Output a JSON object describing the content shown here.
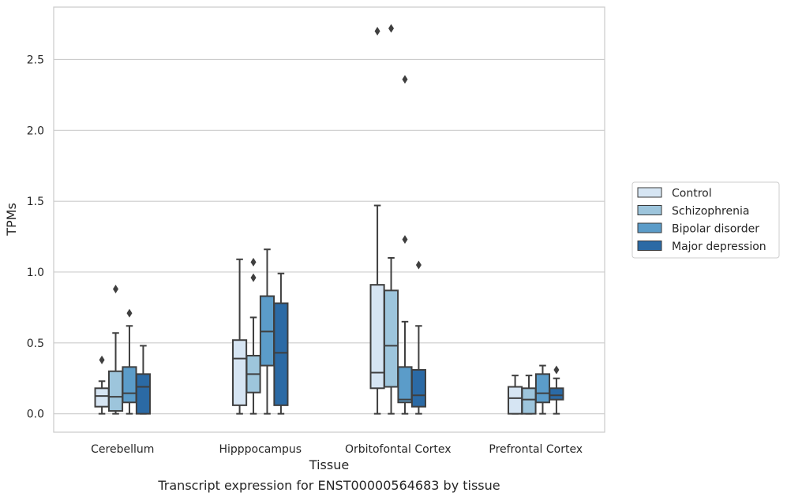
{
  "caption": "Transcript expression for ENST00000564683 by tissue",
  "chart_data": {
    "type": "box",
    "title": "",
    "xlabel": "Tissue",
    "ylabel": "TPMs",
    "ylim": [
      -0.13,
      2.87
    ],
    "yticks": [
      0.0,
      0.5,
      1.0,
      1.5,
      2.0,
      2.5
    ],
    "ytick_labels": [
      "0.0",
      "0.5",
      "1.0",
      "1.5",
      "2.0",
      "2.5"
    ],
    "grid": "horizontal",
    "legend_position": "right",
    "categories": [
      "Cerebellum",
      "Hipppocampus",
      "Orbitofontal Cortex",
      "Prefrontal Cortex"
    ],
    "series": [
      {
        "name": "Control",
        "color": "#d6e5f3",
        "boxes": [
          {
            "whislo": 0.0,
            "q1": 0.05,
            "med": 0.125,
            "q3": 0.18,
            "whishi": 0.23,
            "fliers": [
              0.38
            ]
          },
          {
            "whislo": 0.0,
            "q1": 0.06,
            "med": 0.39,
            "q3": 0.52,
            "whishi": 1.09,
            "fliers": []
          },
          {
            "whislo": 0.0,
            "q1": 0.18,
            "med": 0.29,
            "q3": 0.91,
            "whishi": 1.47,
            "fliers": [
              2.7
            ]
          },
          {
            "whislo": 0.0,
            "q1": 0.0,
            "med": 0.11,
            "q3": 0.19,
            "whishi": 0.27,
            "fliers": []
          }
        ]
      },
      {
        "name": "Schizophrenia",
        "color": "#9dc5dc",
        "boxes": [
          {
            "whislo": 0.0,
            "q1": 0.02,
            "med": 0.12,
            "q3": 0.3,
            "whishi": 0.57,
            "fliers": [
              0.88
            ]
          },
          {
            "whislo": 0.0,
            "q1": 0.15,
            "med": 0.28,
            "q3": 0.41,
            "whishi": 0.68,
            "fliers": [
              0.96,
              1.07
            ]
          },
          {
            "whislo": 0.0,
            "q1": 0.19,
            "med": 0.48,
            "q3": 0.87,
            "whishi": 1.1,
            "fliers": [
              2.72
            ]
          },
          {
            "whislo": 0.0,
            "q1": 0.0,
            "med": 0.1,
            "q3": 0.18,
            "whishi": 0.27,
            "fliers": []
          }
        ]
      },
      {
        "name": "Bipolar disorder",
        "color": "#5b9cc9",
        "boxes": [
          {
            "whislo": 0.0,
            "q1": 0.08,
            "med": 0.145,
            "q3": 0.33,
            "whishi": 0.62,
            "fliers": [
              0.71
            ]
          },
          {
            "whislo": 0.0,
            "q1": 0.34,
            "med": 0.58,
            "q3": 0.83,
            "whishi": 1.16,
            "fliers": []
          },
          {
            "whislo": 0.0,
            "q1": 0.08,
            "med": 0.1,
            "q3": 0.33,
            "whishi": 0.65,
            "fliers": [
              1.23,
              2.36
            ]
          },
          {
            "whislo": 0.0,
            "q1": 0.08,
            "med": 0.145,
            "q3": 0.28,
            "whishi": 0.34,
            "fliers": []
          }
        ]
      },
      {
        "name": "Major depression",
        "color": "#2b6aa5",
        "boxes": [
          {
            "whislo": 0.0,
            "q1": 0.0,
            "med": 0.19,
            "q3": 0.28,
            "whishi": 0.48,
            "fliers": []
          },
          {
            "whislo": 0.0,
            "q1": 0.06,
            "med": 0.43,
            "q3": 0.78,
            "whishi": 0.99,
            "fliers": []
          },
          {
            "whislo": 0.0,
            "q1": 0.05,
            "med": 0.13,
            "q3": 0.31,
            "whishi": 0.62,
            "fliers": [
              1.05
            ]
          },
          {
            "whislo": 0.0,
            "q1": 0.1,
            "med": 0.13,
            "q3": 0.18,
            "whishi": 0.25,
            "fliers": [
              0.31
            ]
          }
        ]
      }
    ]
  }
}
